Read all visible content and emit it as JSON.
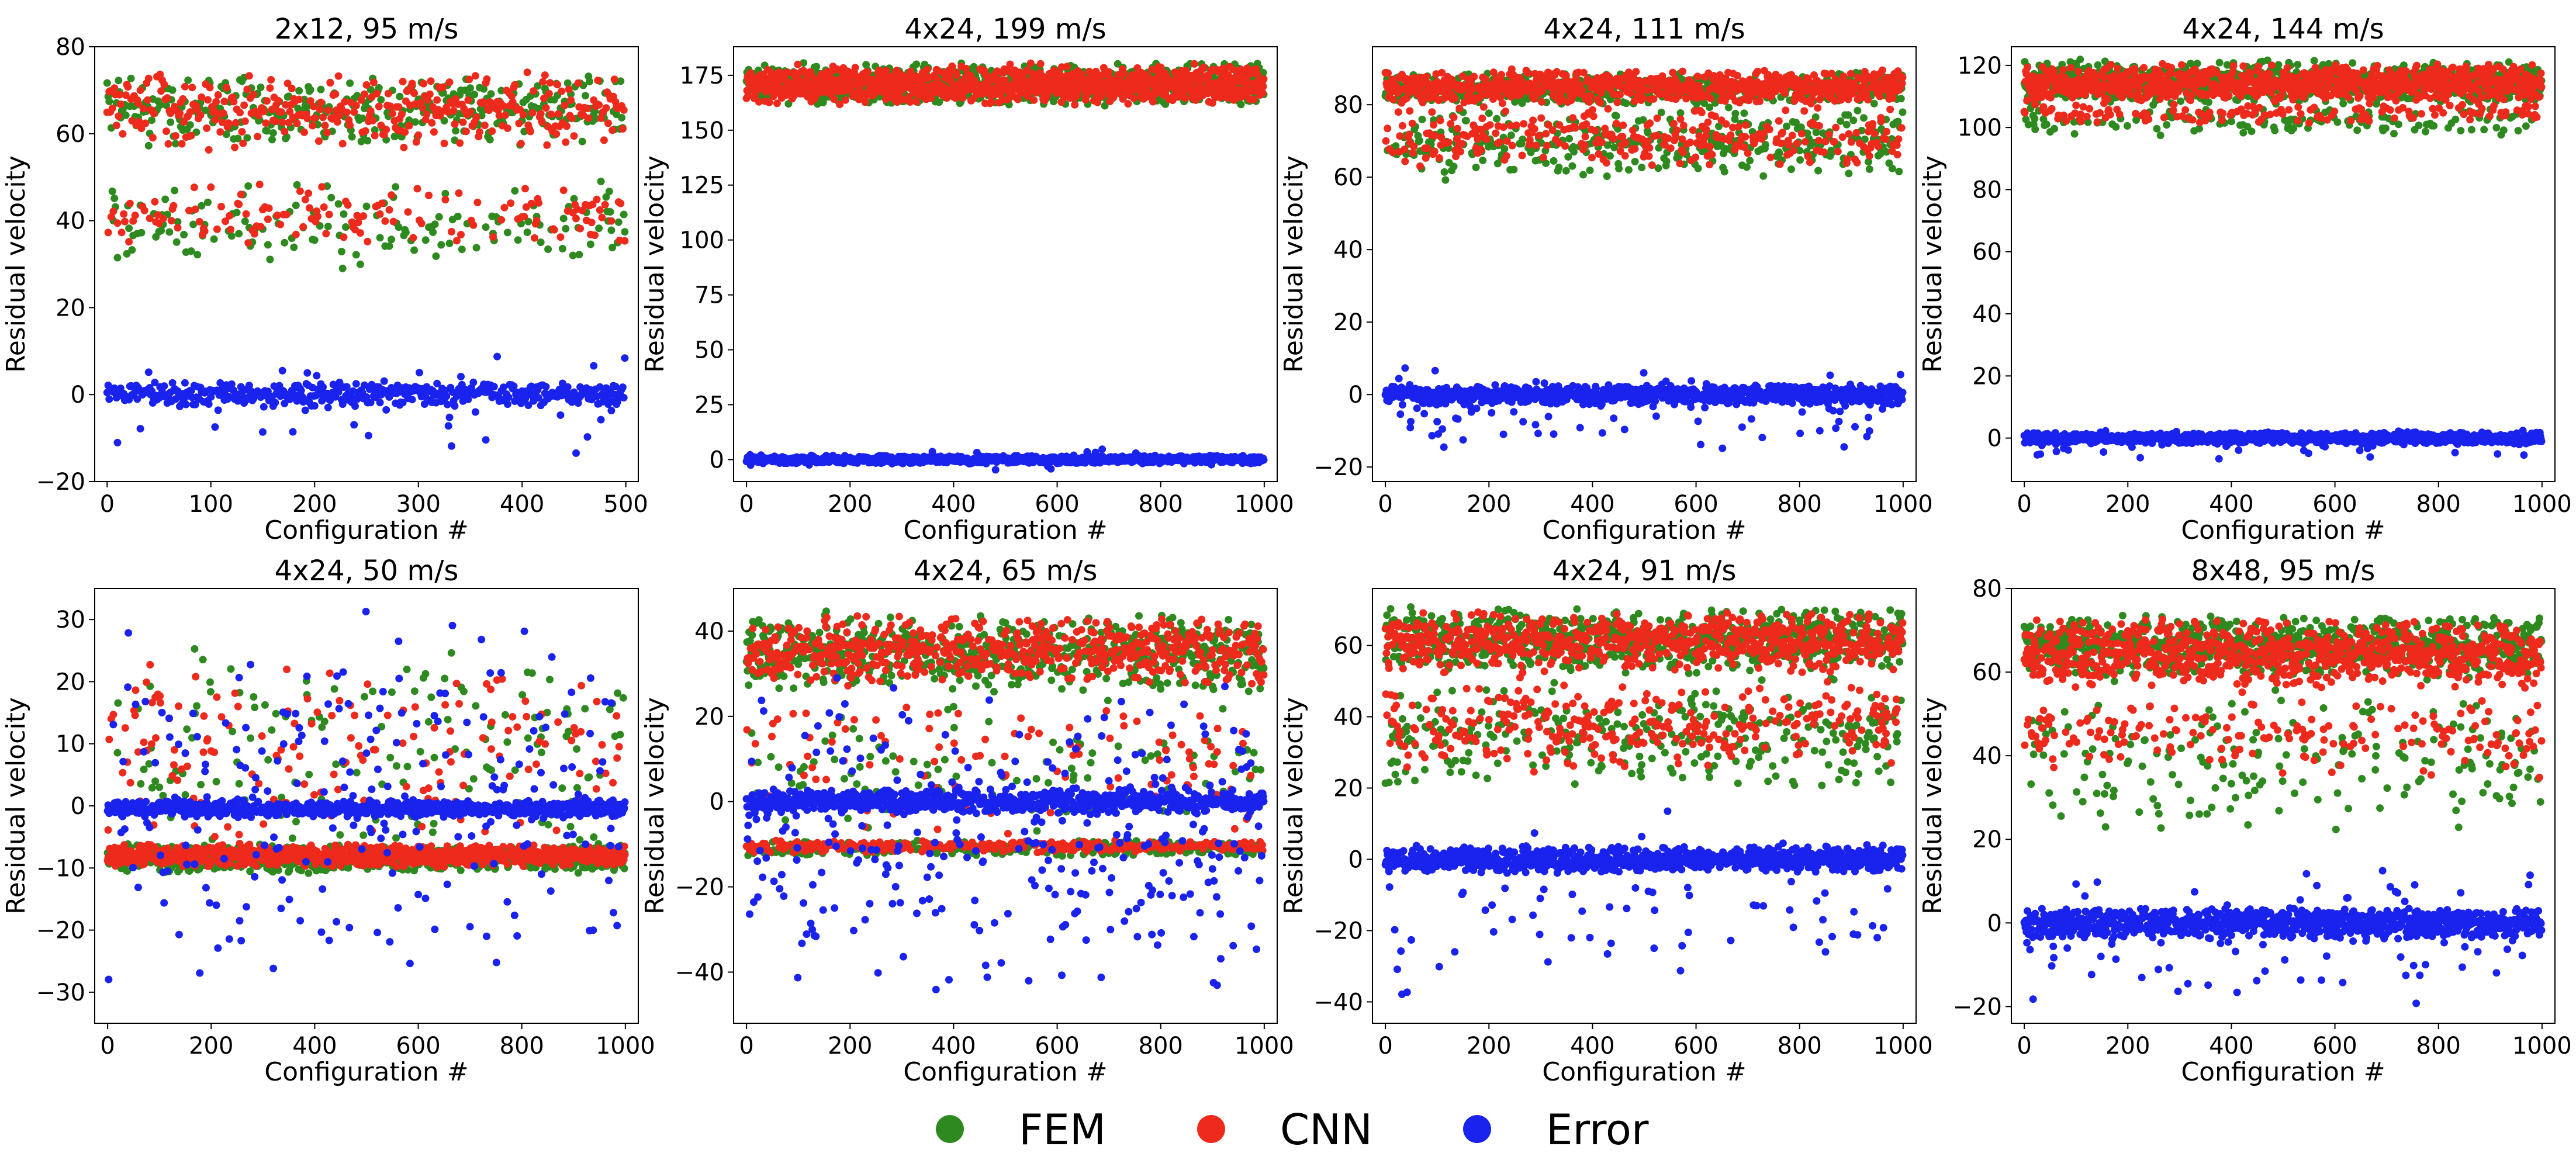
{
  "chart_data": {
    "type": "scatter",
    "legend": {
      "placement": "bottom-center",
      "entries": [
        {
          "name": "FEM",
          "color": "#2e8a1f"
        },
        {
          "name": "CNN",
          "color": "#ee2a1c"
        },
        {
          "name": "Error",
          "color": "#1a22ee"
        }
      ]
    },
    "panels": [
      {
        "title": "2x12, 95 m/s",
        "xlabel": "Configuration #",
        "ylabel": "Residual velocity",
        "xlim": [
          -12,
          512
        ],
        "ylim": [
          -20,
          80
        ],
        "xticks": [
          0,
          100,
          200,
          300,
          400,
          500
        ],
        "yticks": [
          -20,
          0,
          20,
          40,
          60,
          80
        ],
        "n_points": 500,
        "series": [
          {
            "name": "FEM",
            "dist": [
              {
                "w": 0.72,
                "lo": 57,
                "hi": 74
              },
              {
                "w": 0.28,
                "lo": 28,
                "hi": 50
              }
            ]
          },
          {
            "name": "CNN",
            "dist": [
              {
                "w": 0.72,
                "lo": 56,
                "hi": 75
              },
              {
                "w": 0.28,
                "lo": 33,
                "hi": 49
              }
            ]
          },
          {
            "name": "Error",
            "dist": [
              {
                "w": 0.9,
                "lo": -3,
                "hi": 3
              },
              {
                "w": 0.1,
                "lo": -15,
                "hi": 12
              }
            ]
          }
        ]
      },
      {
        "title": "4x24, 199 m/s",
        "xlabel": "Configuration #",
        "ylabel": "Residual velocity",
        "xlim": [
          -25,
          1025
        ],
        "ylim": [
          -10,
          188
        ],
        "xticks": [
          0,
          200,
          400,
          600,
          800,
          1000
        ],
        "yticks": [
          0,
          25,
          50,
          75,
          100,
          125,
          150,
          175
        ],
        "n_points": 1000,
        "series": [
          {
            "name": "FEM",
            "dist": [
              {
                "w": 1,
                "lo": 161,
                "hi": 181
              }
            ]
          },
          {
            "name": "CNN",
            "dist": [
              {
                "w": 1,
                "lo": 161,
                "hi": 181
              }
            ]
          },
          {
            "name": "Error",
            "dist": [
              {
                "w": 0.95,
                "lo": -2,
                "hi": 2
              },
              {
                "w": 0.05,
                "lo": -5,
                "hi": 5
              }
            ]
          }
        ]
      },
      {
        "title": "4x24, 111 m/s",
        "xlabel": "Configuration #",
        "ylabel": "Residual velocity",
        "xlim": [
          -25,
          1025
        ],
        "ylim": [
          -24,
          96
        ],
        "xticks": [
          0,
          200,
          400,
          600,
          800,
          1000
        ],
        "yticks": [
          -20,
          0,
          20,
          40,
          60,
          80
        ],
        "n_points": 1000,
        "series": [
          {
            "name": "FEM",
            "dist": [
              {
                "w": 0.65,
                "lo": 80,
                "hi": 89
              },
              {
                "w": 0.35,
                "lo": 59,
                "hi": 80
              }
            ]
          },
          {
            "name": "CNN",
            "dist": [
              {
                "w": 0.7,
                "lo": 80,
                "hi": 90
              },
              {
                "w": 0.3,
                "lo": 62,
                "hi": 80
              }
            ]
          },
          {
            "name": "Error",
            "dist": [
              {
                "w": 0.92,
                "lo": -3,
                "hi": 3
              },
              {
                "w": 0.08,
                "lo": -17,
                "hi": 8
              }
            ]
          }
        ]
      },
      {
        "title": "4x24, 144 m/s",
        "xlabel": "Configuration #",
        "ylabel": "Residual velocity",
        "xlim": [
          -25,
          1025
        ],
        "ylim": [
          -14,
          126
        ],
        "xticks": [
          0,
          200,
          400,
          600,
          800,
          1000
        ],
        "yticks": [
          0,
          20,
          40,
          60,
          80,
          100,
          120
        ],
        "n_points": 1000,
        "series": [
          {
            "name": "FEM",
            "dist": [
              {
                "w": 0.85,
                "lo": 107,
                "hi": 122
              },
              {
                "w": 0.15,
                "lo": 97,
                "hi": 107
              }
            ]
          },
          {
            "name": "CNN",
            "dist": [
              {
                "w": 0.85,
                "lo": 108,
                "hi": 121
              },
              {
                "w": 0.15,
                "lo": 101,
                "hi": 108
              }
            ]
          },
          {
            "name": "Error",
            "dist": [
              {
                "w": 0.95,
                "lo": -2,
                "hi": 2
              },
              {
                "w": 0.05,
                "lo": -7,
                "hi": 3
              }
            ]
          }
        ]
      },
      {
        "title": "4x24, 50 m/s",
        "xlabel": "Configuration #",
        "ylabel": "Residual velocity",
        "xlim": [
          -25,
          1025
        ],
        "ylim": [
          -35,
          35
        ],
        "xticks": [
          0,
          200,
          400,
          600,
          800,
          1000
        ],
        "yticks": [
          -30,
          -20,
          -10,
          0,
          10,
          20,
          30
        ],
        "n_points": 1000,
        "series": [
          {
            "name": "FEM",
            "dist": [
              {
                "w": 0.85,
                "lo": -11,
                "hi": -6
              },
              {
                "w": 0.15,
                "lo": -12,
                "hi": 28
              }
            ]
          },
          {
            "name": "CNN",
            "dist": [
              {
                "w": 0.85,
                "lo": -10,
                "hi": -6
              },
              {
                "w": 0.15,
                "lo": -8,
                "hi": 26
              }
            ]
          },
          {
            "name": "Error",
            "dist": [
              {
                "w": 0.75,
                "lo": -2,
                "hi": 1
              },
              {
                "w": 0.25,
                "lo": -32,
                "hi": 33
              }
            ]
          }
        ]
      },
      {
        "title": "4x24, 65 m/s",
        "xlabel": "Configuration #",
        "ylabel": "Residual velocity",
        "xlim": [
          -25,
          1025
        ],
        "ylim": [
          -52,
          50
        ],
        "xticks": [
          0,
          200,
          400,
          600,
          800,
          1000
        ],
        "yticks": [
          -40,
          -20,
          0,
          20,
          40
        ],
        "n_points": 1000,
        "series": [
          {
            "name": "FEM",
            "dist": [
              {
                "w": 0.6,
                "lo": 25,
                "hi": 45
              },
              {
                "w": 0.3,
                "lo": -13,
                "hi": -9
              },
              {
                "w": 0.1,
                "lo": -10,
                "hi": 25
              }
            ]
          },
          {
            "name": "CNN",
            "dist": [
              {
                "w": 0.6,
                "lo": 27,
                "hi": 44
              },
              {
                "w": 0.3,
                "lo": -12,
                "hi": -9
              },
              {
                "w": 0.1,
                "lo": -8,
                "hi": 27
              }
            ]
          },
          {
            "name": "Error",
            "dist": [
              {
                "w": 0.7,
                "lo": -3,
                "hi": 3
              },
              {
                "w": 0.3,
                "lo": -47,
                "hi": 30
              }
            ]
          }
        ]
      },
      {
        "title": "4x24, 91 m/s",
        "xlabel": "Configuration #",
        "ylabel": "Residual velocity",
        "xlim": [
          -25,
          1025
        ],
        "ylim": [
          -46,
          76
        ],
        "xticks": [
          0,
          200,
          400,
          600,
          800,
          1000
        ],
        "yticks": [
          -40,
          -20,
          0,
          20,
          40,
          60
        ],
        "n_points": 1000,
        "series": [
          {
            "name": "FEM",
            "dist": [
              {
                "w": 0.7,
                "lo": 52,
                "hi": 71
              },
              {
                "w": 0.3,
                "lo": 18,
                "hi": 52
              }
            ]
          },
          {
            "name": "CNN",
            "dist": [
              {
                "w": 0.7,
                "lo": 52,
                "hi": 70
              },
              {
                "w": 0.3,
                "lo": 24,
                "hi": 52
              }
            ]
          },
          {
            "name": "Error",
            "dist": [
              {
                "w": 0.92,
                "lo": -4,
                "hi": 4
              },
              {
                "w": 0.08,
                "lo": -41,
                "hi": 15
              }
            ]
          }
        ]
      },
      {
        "title": "8x48, 95 m/s",
        "xlabel": "Configuration #",
        "ylabel": "Residual velocity",
        "xlim": [
          -25,
          1025
        ],
        "ylim": [
          -24,
          80
        ],
        "xticks": [
          0,
          200,
          400,
          600,
          800,
          1000
        ],
        "yticks": [
          -20,
          0,
          20,
          40,
          60,
          80
        ],
        "n_points": 1000,
        "series": [
          {
            "name": "FEM",
            "dist": [
              {
                "w": 0.82,
                "lo": 58,
                "hi": 74
              },
              {
                "w": 0.18,
                "lo": 20,
                "hi": 58
              }
            ]
          },
          {
            "name": "CNN",
            "dist": [
              {
                "w": 0.82,
                "lo": 56,
                "hi": 73
              },
              {
                "w": 0.18,
                "lo": 34,
                "hi": 56
              }
            ]
          },
          {
            "name": "Error",
            "dist": [
              {
                "w": 0.9,
                "lo": -4,
                "hi": 4
              },
              {
                "w": 0.1,
                "lo": -20,
                "hi": 16
              }
            ]
          }
        ]
      }
    ]
  }
}
